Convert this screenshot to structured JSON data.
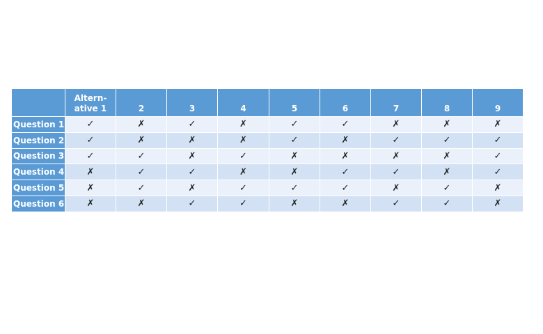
{
  "chart_data": {
    "type": "table",
    "columns": [
      "",
      "Altern-\native 1",
      "2",
      "3",
      "4",
      "5",
      "6",
      "7",
      "8",
      "9"
    ],
    "rows": [
      {
        "label": "Question 1",
        "cells": [
          "✓",
          "✗",
          "✓",
          "✗",
          "✓",
          "✓",
          "✗",
          "✗",
          "✗"
        ]
      },
      {
        "label": "Question 2",
        "cells": [
          "✓",
          "✗",
          "✗",
          "✗",
          "✓",
          "✗",
          "✓",
          "✓",
          "✓"
        ]
      },
      {
        "label": "Question 3",
        "cells": [
          "✓",
          "✓",
          "✗",
          "✓",
          "✗",
          "✗",
          "✗",
          "✗",
          "✓"
        ]
      },
      {
        "label": "Question 4",
        "cells": [
          "✗",
          "✓",
          "✓",
          "✗",
          "✗",
          "✓",
          "✓",
          "✗",
          "✓"
        ]
      },
      {
        "label": "Question 5",
        "cells": [
          "✗",
          "✓",
          "✗",
          "✓",
          "✓",
          "✓",
          "✗",
          "✓",
          "✗"
        ]
      },
      {
        "label": "Question 6",
        "cells": [
          "✗",
          "✗",
          "✓",
          "✓",
          "✗",
          "✗",
          "✓",
          "✓",
          "✗"
        ]
      }
    ],
    "header_color": "#5b9bd5",
    "band_colors": [
      "#eaf1fb",
      "#d2e1f3"
    ]
  }
}
